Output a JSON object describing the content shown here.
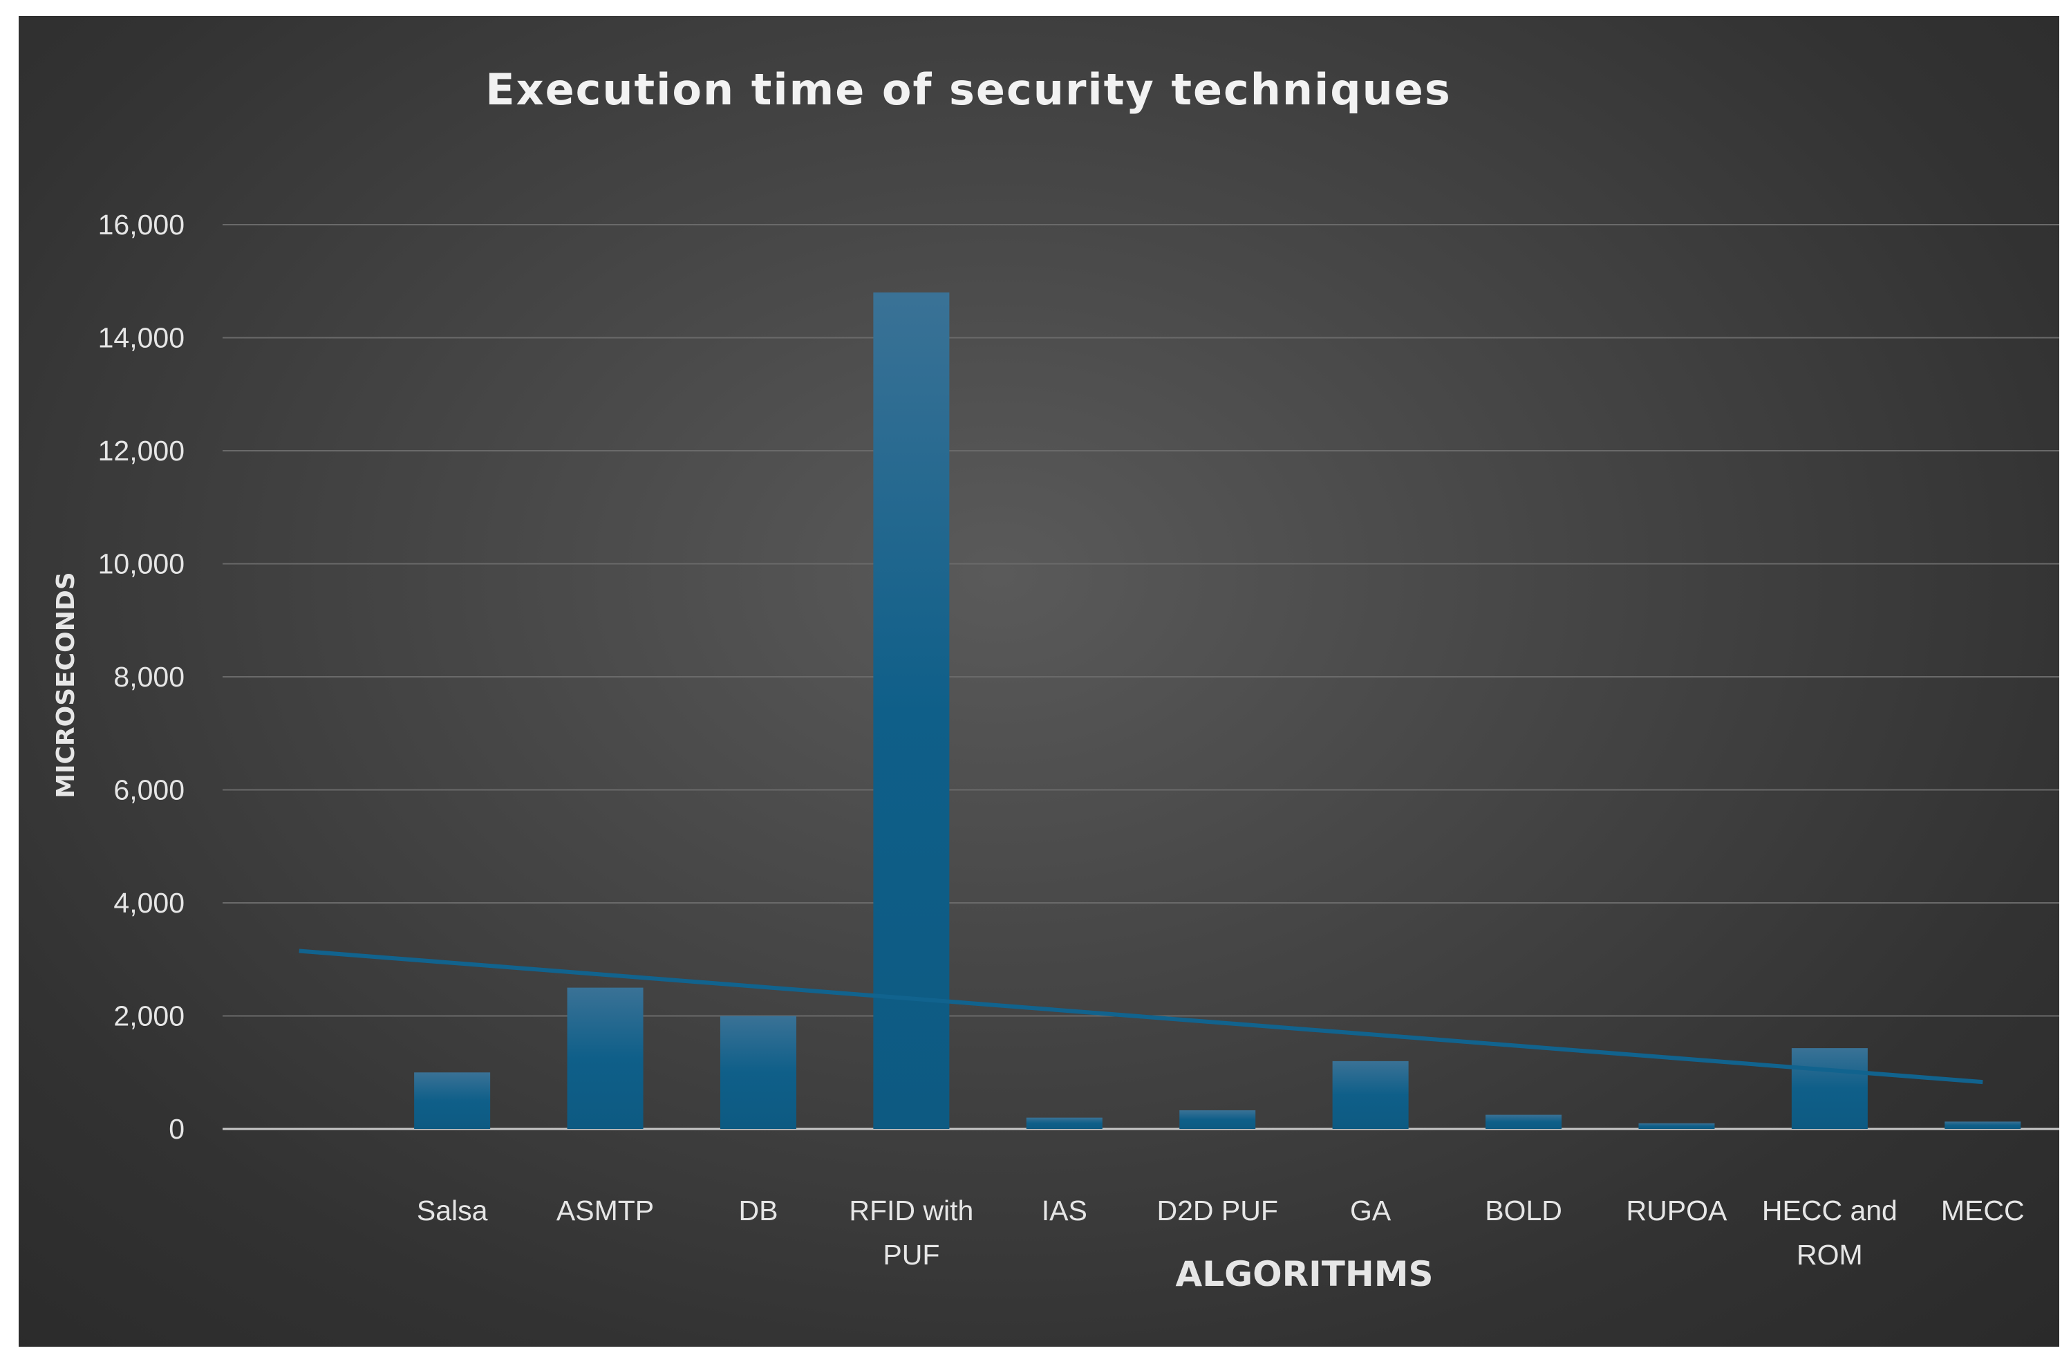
{
  "chart_data": {
    "type": "bar",
    "title": "Execution time of security techniques",
    "xlabel": "ALGORITHMS",
    "ylabel": "MICROSECONDS",
    "ylim": [
      0,
      16000
    ],
    "yticks": [
      0,
      2000,
      4000,
      6000,
      8000,
      10000,
      12000,
      14000,
      16000
    ],
    "ytick_labels": [
      "0",
      "2,000",
      "4,000",
      "6,000",
      "8,000",
      "10,000",
      "12,000",
      "14,000",
      "16,000"
    ],
    "categories": [
      "",
      "Salsa",
      "ASMTP",
      "DB",
      "RFID with PUF",
      "IAS",
      "D2D PUF",
      "GA",
      "BOLD",
      "RUPOA",
      "HECC and ROM",
      "MECC"
    ],
    "category_lines": [
      [
        ""
      ],
      [
        "Salsa"
      ],
      [
        "ASMTP"
      ],
      [
        "DB"
      ],
      [
        "RFID with",
        "PUF"
      ],
      [
        "IAS"
      ],
      [
        "D2D PUF"
      ],
      [
        "GA"
      ],
      [
        "BOLD"
      ],
      [
        "RUPOA"
      ],
      [
        "HECC and",
        "ROM"
      ],
      [
        "MECC"
      ]
    ],
    "values": [
      null,
      1000,
      2500,
      2000,
      14800,
      200,
      330,
      1200,
      250,
      100,
      1430,
      130
    ],
    "trendline": {
      "type": "linear",
      "start": 3150,
      "end": 830
    },
    "grid": true,
    "legend": "none",
    "colors": {
      "bar": "#16648d",
      "trend": "#11638e",
      "background": "#3c3c3c"
    }
  }
}
